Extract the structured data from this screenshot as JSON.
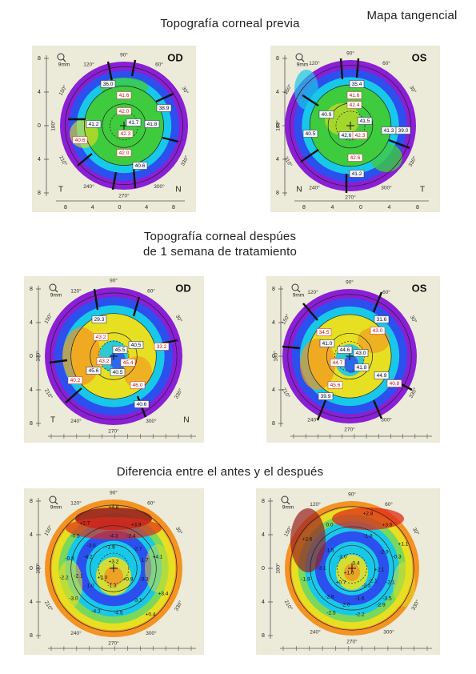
{
  "header": {
    "title_previa": "Topografía corneal previa",
    "map_type": "Mapa tangencial",
    "title_despues_line1": "Topografía corneal despúes",
    "title_despues_line2": "de 1 semana de tratamiento",
    "title_diferencia": "Diferencia entre el antes y el después"
  },
  "colors": {
    "panel_bg": "#ecead8",
    "purple": "#8a1fd6",
    "blue": "#2b50ee",
    "cyan": "#18c8e8",
    "green": "#3ecb3e",
    "yellow": "#e7df22",
    "orange": "#f39322",
    "red": "#e02a18",
    "dark_red": "#9a2020"
  },
  "maps": [
    {
      "id": "pre-od",
      "eye": "OD",
      "zoom": "9mm",
      "angle_labels": [
        "90°",
        "120°",
        "150°",
        "180°",
        "210°",
        "240°",
        "270°",
        "300°",
        "330°",
        "30°",
        "60°"
      ],
      "y_ticks": [
        "8",
        "4",
        "0",
        "4",
        "8"
      ],
      "x_ticks": [
        "8",
        "4",
        "0",
        "4",
        "8"
      ],
      "left_letter": "T",
      "right_letter": "N",
      "values": [
        "36.0",
        "41.6",
        "38.9",
        "42.0",
        "41.2",
        "41.7",
        "41.8",
        "42.3",
        "40.6",
        "42.0",
        "40.6"
      ]
    },
    {
      "id": "pre-os",
      "eye": "OS",
      "zoom": "9mm",
      "angle_labels": [
        "90°",
        "120°",
        "150°",
        "180°",
        "210°",
        "240°",
        "270°",
        "300°",
        "330°",
        "30°",
        "60°"
      ],
      "y_ticks": [
        "8",
        "4",
        "0",
        "4",
        "8"
      ],
      "x_ticks": [
        "8",
        "4",
        "0",
        "4",
        "8"
      ],
      "left_letter": "N",
      "right_letter": "T",
      "values": [
        "35.4",
        "41.6",
        "40.9",
        "42.4",
        "41.5",
        "40.5",
        "42.6",
        "42.3",
        "41.3",
        "39.0",
        "42.6",
        "41.2"
      ]
    },
    {
      "id": "post-od",
      "eye": "OD",
      "zoom": "9mm",
      "angle_labels": [
        "90°",
        "120°",
        "150°",
        "180°",
        "210°",
        "240°",
        "270°",
        "300°",
        "330°",
        "30°",
        "60°"
      ],
      "y_ticks": [
        "8",
        "4",
        "0",
        "4",
        "8"
      ],
      "left_letter": "T",
      "right_letter": "N",
      "values": [
        "29.3",
        "43.2",
        "40.5",
        "45.5",
        "33.2",
        "43.2",
        "45.4",
        "45.6",
        "40.5",
        "40.2",
        "46.0",
        "40.6"
      ]
    },
    {
      "id": "post-os",
      "eye": "OS",
      "zoom": "9mm",
      "angle_labels": [
        "90°",
        "120°",
        "150°",
        "180°",
        "210°",
        "240°",
        "270°",
        "300°",
        "330°",
        "30°",
        "60°"
      ],
      "y_ticks": [
        "8",
        "4",
        "0",
        "4",
        "8"
      ],
      "values": [
        "31.6",
        "34.5",
        "41.0",
        "43.0",
        "44.6",
        "43.0",
        "44.7",
        "41.8",
        "44.9",
        "40.8",
        "45.6",
        "39.9"
      ]
    },
    {
      "id": "diff-od",
      "zoom": "9mm",
      "angle_labels": [
        "90°",
        "120°",
        "150°",
        "180°",
        "210°",
        "240°",
        "270°",
        "300°",
        "330°",
        "30°",
        "60°"
      ],
      "y_ticks": [
        "8",
        "4",
        "0",
        "4",
        "8"
      ],
      "values": [
        "+4.8",
        "+2.7",
        "+3.9",
        "-0.5",
        "-4.3",
        "-2.4",
        "-3.0",
        "-1.9",
        "-2.7",
        "-0.8",
        "-4.2",
        "-1.7",
        "+4.1",
        "-2.1",
        "+3.2",
        "-2.2",
        "+2.0",
        "+0.9",
        "-3.3",
        "-1.0",
        "-1.3",
        "+3.4",
        "-3.0",
        "-3.1",
        "-4.3",
        "-4.5",
        "+0.4"
      ]
    },
    {
      "id": "diff-os",
      "zoom": "9mm",
      "angle_labels": [
        "90°",
        "120°",
        "150°",
        "180°",
        "210°",
        "240°",
        "270°",
        "300°",
        "330°",
        "30°",
        "60°"
      ],
      "y_ticks": [
        "8",
        "4",
        "0",
        "4",
        "8"
      ],
      "values": [
        "+2.8",
        "0.0",
        "+3.6",
        "+2.6",
        "-1.8",
        "-1.5",
        "-2.9",
        "+1.1",
        "-2.0",
        "-0.3",
        "-3.1",
        "-0.4",
        "+2.1",
        "-1.9",
        "+1.0",
        "+0.7",
        "-2.5",
        "-2.1",
        "-2.1",
        "-2.6",
        "-1.6",
        "-3.5",
        "-2.0",
        "-2.9",
        "-2.5",
        "-2.2"
      ]
    }
  ]
}
